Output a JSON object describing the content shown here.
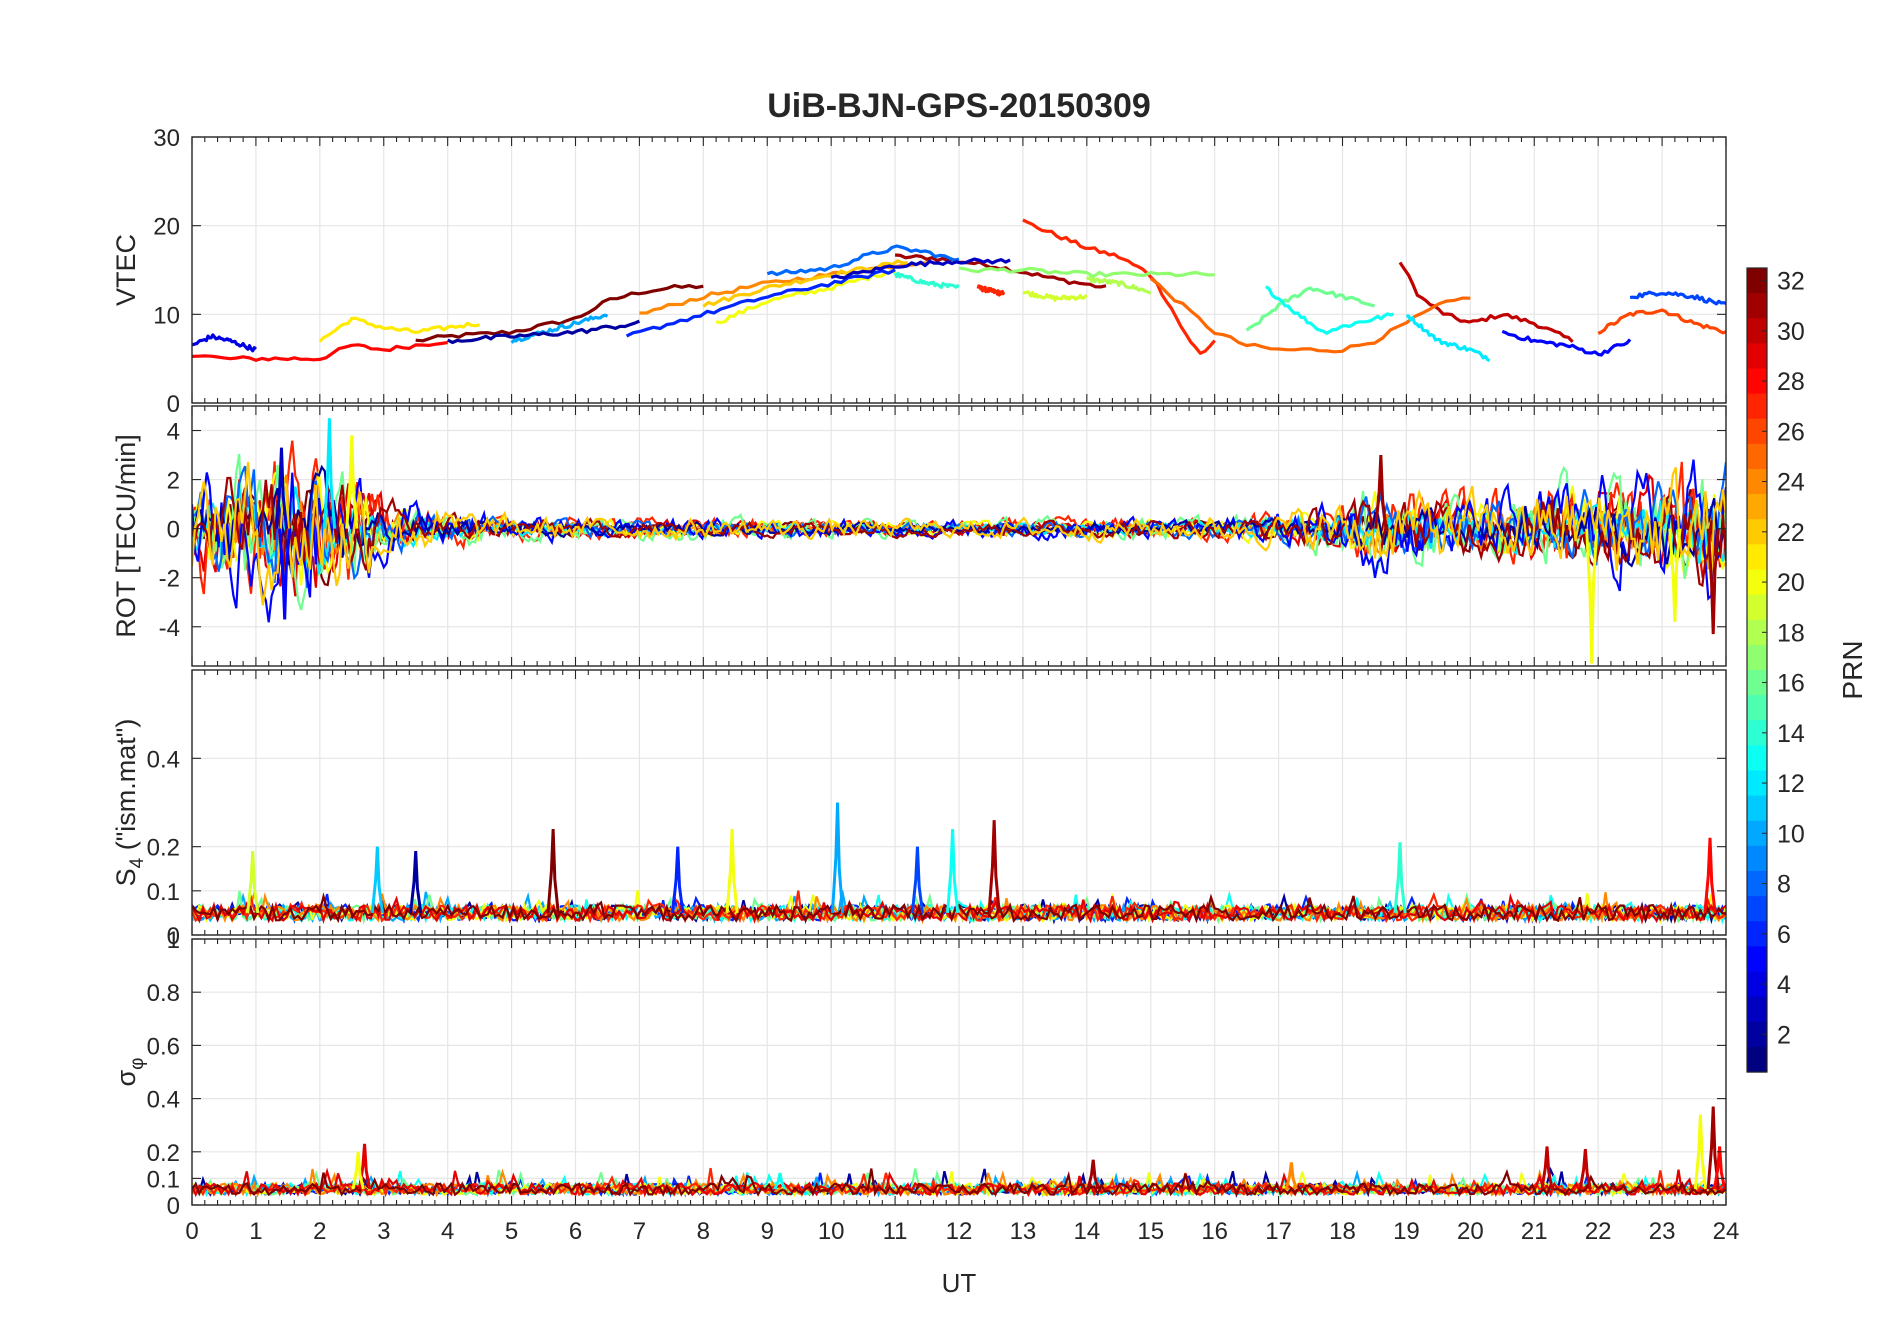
{
  "chart_data": {
    "type": "line",
    "title": "UiB-BJN-GPS-20150309",
    "xlabel": "UT",
    "xlim": [
      0,
      24
    ],
    "x_ticks": [
      "0",
      "1",
      "2",
      "3",
      "4",
      "5",
      "6",
      "7",
      "8",
      "9",
      "10",
      "11",
      "12",
      "13",
      "14",
      "15",
      "16",
      "17",
      "18",
      "19",
      "20",
      "21",
      "22",
      "23",
      "24"
    ],
    "grid": true,
    "colorbar": {
      "label": "PRN",
      "range": [
        1,
        32
      ],
      "ticks": [
        "2",
        "4",
        "6",
        "8",
        "10",
        "12",
        "14",
        "16",
        "18",
        "20",
        "22",
        "24",
        "26",
        "28",
        "30",
        "32"
      ],
      "colormap": "jet"
    },
    "panels": [
      {
        "id": "vtec",
        "ylabel": "VTEC",
        "ylim": [
          0,
          30
        ],
        "y_ticks": [
          "0",
          "10",
          "20",
          "30"
        ],
        "series": [
          {
            "prn": 32,
            "x": [
              3.5,
              4,
              5,
              6,
              6.5,
              7,
              7.5,
              8
            ],
            "y": [
              7,
              7.5,
              8,
              9.5,
              11.5,
              12.5,
              13,
              13.2
            ]
          },
          {
            "prn": 31,
            "x": [
              11,
              11.5,
              12,
              12.5,
              13,
              13.5,
              14.3
            ],
            "y": [
              16.5,
              16.4,
              16,
              15.5,
              14.8,
              14,
              13
            ]
          },
          {
            "prn": 30,
            "x": [
              18.9,
              19.2,
              19.6,
              20,
              20.5,
              21,
              21.6
            ],
            "y": [
              16,
              12,
              10,
              9,
              10,
              9,
              7
            ]
          },
          {
            "prn": 28,
            "x": [
              0,
              0.5,
              1,
              1.5,
              2,
              2.5,
              3,
              3.5,
              4
            ],
            "y": [
              5.5,
              5,
              5,
              5,
              5,
              6.5,
              6,
              6.5,
              7
            ]
          },
          {
            "prn": 27,
            "x": [
              13,
              13.5,
              14,
              14.5,
              15,
              15.3,
              15.6,
              15.8,
              16
            ],
            "y": [
              20.5,
              19,
              17.5,
              16.5,
              14.5,
              11,
              7,
              5.5,
              7
            ]
          },
          {
            "prn": 27,
            "x": [
              12.3,
              12.7
            ],
            "y": [
              13,
              12.3
            ]
          },
          {
            "prn": 26,
            "x": [
              22,
              22.5,
              23,
              23.5,
              24
            ],
            "y": [
              8,
              10,
              10.5,
              9,
              8
            ]
          },
          {
            "prn": 25,
            "x": [
              15,
              15.5,
              16,
              16.5,
              17,
              18,
              18.5,
              19,
              19.5,
              20
            ],
            "y": [
              14,
              11,
              8,
              6.5,
              6,
              6,
              7,
              9,
              11,
              12
            ]
          },
          {
            "prn": 24,
            "x": [
              7,
              8,
              9,
              10,
              11,
              11.5
            ],
            "y": [
              10,
              12,
              13.5,
              14.5,
              15.5,
              16
            ]
          },
          {
            "prn": 22,
            "x": [
              8,
              9,
              10,
              11.2
            ],
            "y": [
              11,
              13,
              14.5,
              16
            ]
          },
          {
            "prn": 21,
            "x": [
              2,
              2.5,
              3,
              3.5,
              4.5
            ],
            "y": [
              7,
              9.5,
              8.5,
              8,
              9
            ]
          },
          {
            "prn": 20,
            "x": [
              8.2,
              9,
              10,
              11
            ],
            "y": [
              9,
              11.5,
              13,
              15
            ]
          },
          {
            "prn": 19,
            "x": [
              13,
              13.5,
              14
            ],
            "y": [
              12.5,
              11.8,
              12
            ]
          },
          {
            "prn": 18,
            "x": [
              14,
              14.5,
              15
            ],
            "y": [
              14,
              13.5,
              12.5
            ]
          },
          {
            "prn": 17,
            "x": [
              12,
              13,
              14,
              15,
              16
            ],
            "y": [
              15,
              15,
              14.5,
              14.5,
              14.5
            ]
          },
          {
            "prn": 16,
            "x": [
              16.5,
              17,
              17.5,
              18,
              18.5
            ],
            "y": [
              8,
              11,
              13,
              12,
              11
            ]
          },
          {
            "prn": 14,
            "x": [
              11,
              11.5,
              12
            ],
            "y": [
              14.5,
              13.5,
              13
            ]
          },
          {
            "prn": 13,
            "x": [
              16.8,
              17.3,
              17.7,
              18.2,
              18.8
            ],
            "y": [
              13,
              10,
              8,
              9,
              10
            ]
          },
          {
            "prn": 12,
            "x": [
              19,
              19.5,
              20,
              20.3
            ],
            "y": [
              10,
              7,
              6,
              5
            ]
          },
          {
            "prn": 10,
            "x": [
              5,
              5.5,
              6,
              6.5
            ],
            "y": [
              7,
              8,
              9,
              10
            ]
          },
          {
            "prn": 8,
            "x": [
              9,
              10,
              10.5,
              11,
              11.5,
              12
            ],
            "y": [
              14.5,
              15.2,
              16.5,
              17.5,
              17,
              16
            ]
          },
          {
            "prn": 7,
            "x": [
              22.5,
              23,
              23.5,
              24
            ],
            "y": [
              12,
              12.5,
              12,
              11
            ]
          },
          {
            "prn": 6,
            "x": [
              6.8,
              7.5,
              8,
              9,
              10,
              11
            ],
            "y": [
              7.5,
              9,
              10,
              12,
              13.5,
              15
            ]
          },
          {
            "prn": 5,
            "x": [
              20.5,
              21,
              21.5,
              22,
              22.5
            ],
            "y": [
              8,
              7,
              6.5,
              5.5,
              7
            ]
          },
          {
            "prn": 4,
            "x": [
              0,
              0.3,
              0.6,
              1
            ],
            "y": [
              6.5,
              7.5,
              7,
              6
            ]
          },
          {
            "prn": 3,
            "x": [
              10,
              11,
              12,
              12.8
            ],
            "y": [
              14,
              15.5,
              16,
              16
            ]
          },
          {
            "prn": 2,
            "x": [
              4,
              5,
              6,
              7
            ],
            "y": [
              7,
              7.5,
              8,
              9
            ]
          }
        ]
      },
      {
        "id": "rot",
        "ylabel": "ROT [TECU/min]",
        "ylim": [
          -5.6,
          5
        ],
        "y_ticks": [
          "-4",
          "-2",
          "0",
          "2",
          "4"
        ],
        "noise_profile": {
          "x": [
            0,
            1,
            2,
            2.5,
            3,
            4,
            5,
            8,
            12,
            16,
            17,
            18,
            18.5,
            19,
            20,
            21,
            22,
            23,
            24
          ],
          "amplitude": [
            1.6,
            2.1,
            2.4,
            1.8,
            0.9,
            0.55,
            0.35,
            0.3,
            0.25,
            0.35,
            0.5,
            0.8,
            1.3,
            1.1,
            1,
            1.2,
            1.5,
            1.7,
            2.2
          ]
        },
        "spikes": [
          {
            "x": 1.45,
            "y": -3.7,
            "prn": 5
          },
          {
            "x": 1.4,
            "y": 3.3,
            "prn": 3
          },
          {
            "x": 2.15,
            "y": 4.5,
            "prn": 12
          },
          {
            "x": 2.5,
            "y": 3.8,
            "prn": 20
          },
          {
            "x": 18.6,
            "y": 3.0,
            "prn": 31
          },
          {
            "x": 21.9,
            "y": -5.5,
            "prn": 20
          },
          {
            "x": 23.2,
            "y": -3.8,
            "prn": 20
          },
          {
            "x": 23.8,
            "y": -4.3,
            "prn": 31
          }
        ]
      },
      {
        "id": "s4",
        "ylabel": "S4 (\"ism.mat\")",
        "ylabel_main": "S",
        "ylabel_sub": "4",
        "ylabel_rest": " (\"ism.mat\")",
        "ylim": [
          0,
          0.6
        ],
        "y_ticks": [
          "0",
          "0.1",
          "0.2",
          "0.4"
        ],
        "baseline": 0.05,
        "spikes": [
          {
            "x": 0.95,
            "y": 0.19,
            "prn": 19
          },
          {
            "x": 2.9,
            "y": 0.2,
            "prn": 11
          },
          {
            "x": 3.5,
            "y": 0.19,
            "prn": 2
          },
          {
            "x": 5.65,
            "y": 0.24,
            "prn": 32
          },
          {
            "x": 7.6,
            "y": 0.2,
            "prn": 6
          },
          {
            "x": 8.45,
            "y": 0.24,
            "prn": 20
          },
          {
            "x": 10.1,
            "y": 0.3,
            "prn": 10
          },
          {
            "x": 11.35,
            "y": 0.2,
            "prn": 7
          },
          {
            "x": 11.9,
            "y": 0.24,
            "prn": 13
          },
          {
            "x": 12.55,
            "y": 0.26,
            "prn": 31
          },
          {
            "x": 18.9,
            "y": 0.21,
            "prn": 14
          },
          {
            "x": 23.75,
            "y": 0.22,
            "prn": 28
          }
        ]
      },
      {
        "id": "sigma_phi",
        "ylabel": "σφ",
        "ylabel_main": "σ",
        "ylabel_sub": "φ",
        "ylim": [
          0,
          1
        ],
        "y_ticks": [
          "0",
          "0.1",
          "0.2",
          "0.4",
          "0.6",
          "0.8",
          "1"
        ],
        "baseline": 0.06,
        "spikes": [
          {
            "x": 2.7,
            "y": 0.23,
            "prn": 29
          },
          {
            "x": 2.6,
            "y": 0.2,
            "prn": 20
          },
          {
            "x": 9.2,
            "y": 0.12,
            "prn": 13
          },
          {
            "x": 14.1,
            "y": 0.17,
            "prn": 31
          },
          {
            "x": 17.2,
            "y": 0.16,
            "prn": 24
          },
          {
            "x": 21.2,
            "y": 0.22,
            "prn": 30
          },
          {
            "x": 21.8,
            "y": 0.21,
            "prn": 30
          },
          {
            "x": 23.6,
            "y": 0.34,
            "prn": 20
          },
          {
            "x": 23.8,
            "y": 0.37,
            "prn": 31
          },
          {
            "x": 23.9,
            "y": 0.22,
            "prn": 28
          }
        ]
      }
    ]
  }
}
